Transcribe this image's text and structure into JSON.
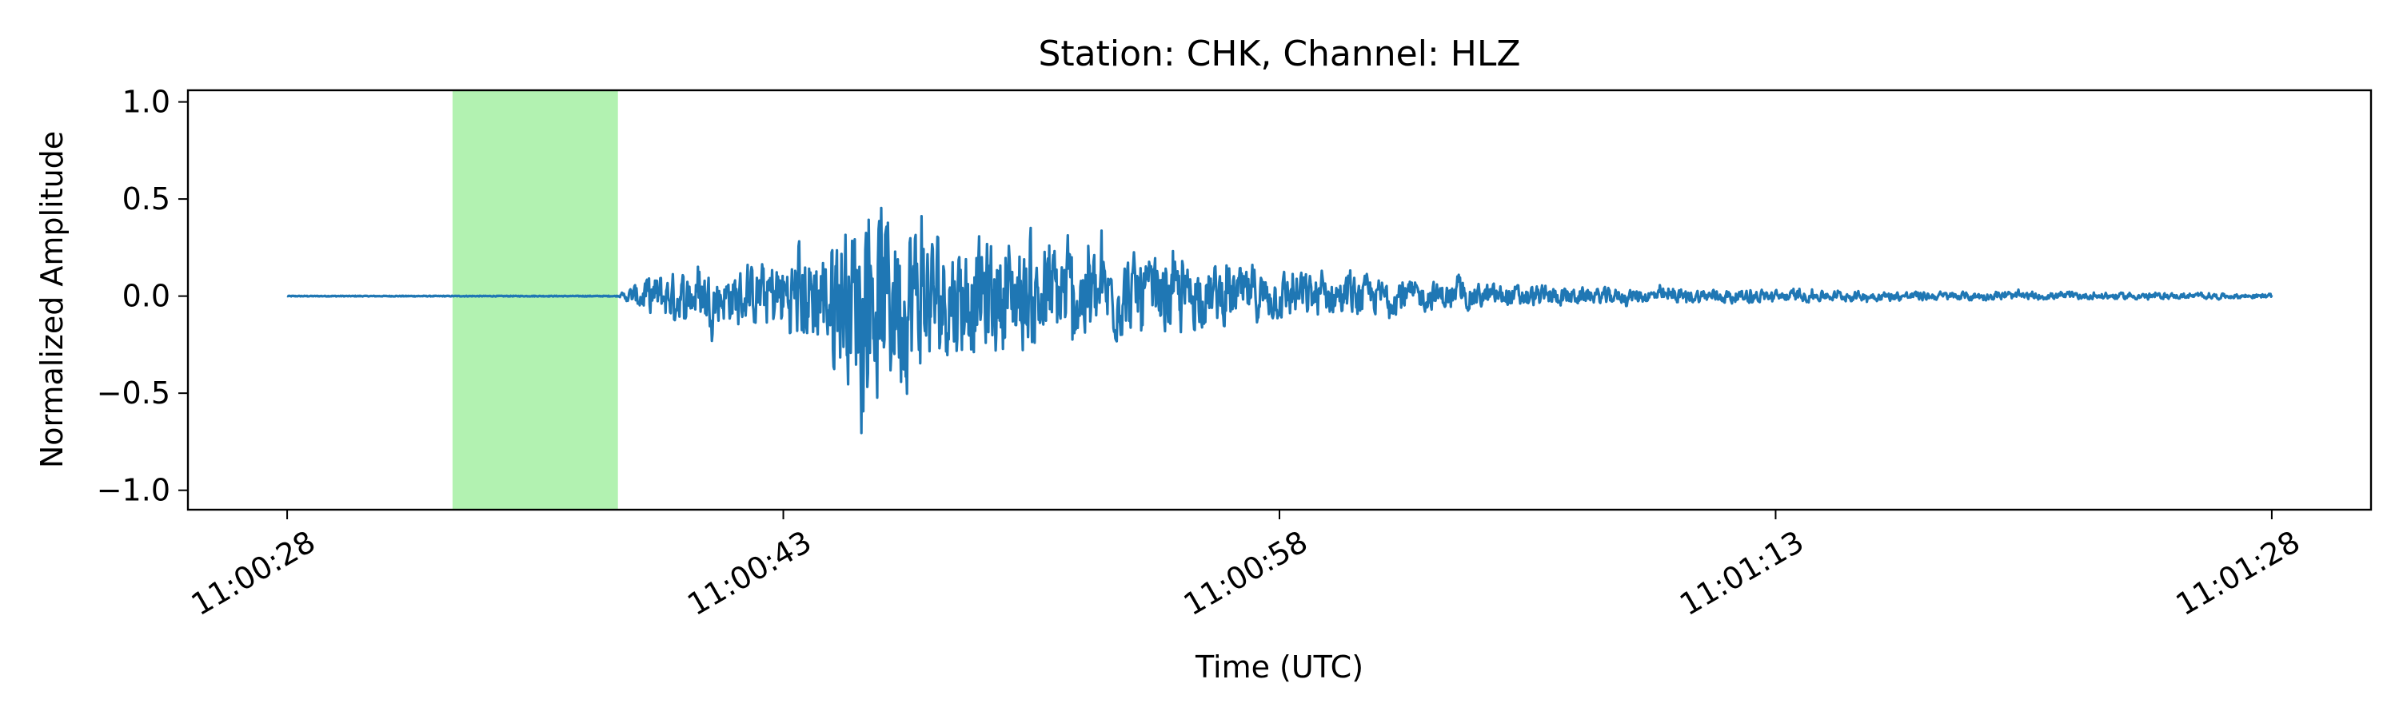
{
  "chart_data": {
    "type": "line",
    "title": "Station: CHK, Channel: HLZ",
    "xlabel": "Time (UTC)",
    "ylabel": "Normalized Amplitude",
    "ylim": [
      -1.1,
      1.06
    ],
    "xlim_seconds": [
      -3,
      63
    ],
    "x_ticks": [
      "11:00:28",
      "11:00:43",
      "11:00:58",
      "11:01:13",
      "11:01:28"
    ],
    "y_ticks": [
      "1.0",
      "0.5",
      "0.0",
      "−0.5",
      "−1.0"
    ],
    "y_tick_values": [
      1.0,
      0.5,
      0.0,
      -0.5,
      -1.0
    ],
    "highlight_window": [
      "11:00:33",
      "11:00:38"
    ],
    "highlight_color": "#b2f2b1",
    "line_color": "#1f77b4",
    "series": [
      {
        "start": "11:00:28",
        "end": "11:01:28",
        "envelope": [
          {
            "t": "11:00:28",
            "a": 0.0
          },
          {
            "t": "11:00:38",
            "a": 0.0
          },
          {
            "t": "11:00:39",
            "a": 0.2
          },
          {
            "t": "11:00:42",
            "a": 0.25
          },
          {
            "t": "11:00:44",
            "a": 0.5
          },
          {
            "t": "11:00:46",
            "a": 0.95
          },
          {
            "t": "11:00:48",
            "a": 0.55
          },
          {
            "t": "11:00:51",
            "a": 0.5
          },
          {
            "t": "11:00:54",
            "a": 0.32
          },
          {
            "t": "11:00:58",
            "a": 0.22
          },
          {
            "t": "11:01:03",
            "a": 0.12
          },
          {
            "t": "11:01:08",
            "a": 0.07
          },
          {
            "t": "11:01:15",
            "a": 0.045
          },
          {
            "t": "11:01:22",
            "a": 0.03
          },
          {
            "t": "11:01:28",
            "a": 0.02
          }
        ]
      }
    ]
  }
}
